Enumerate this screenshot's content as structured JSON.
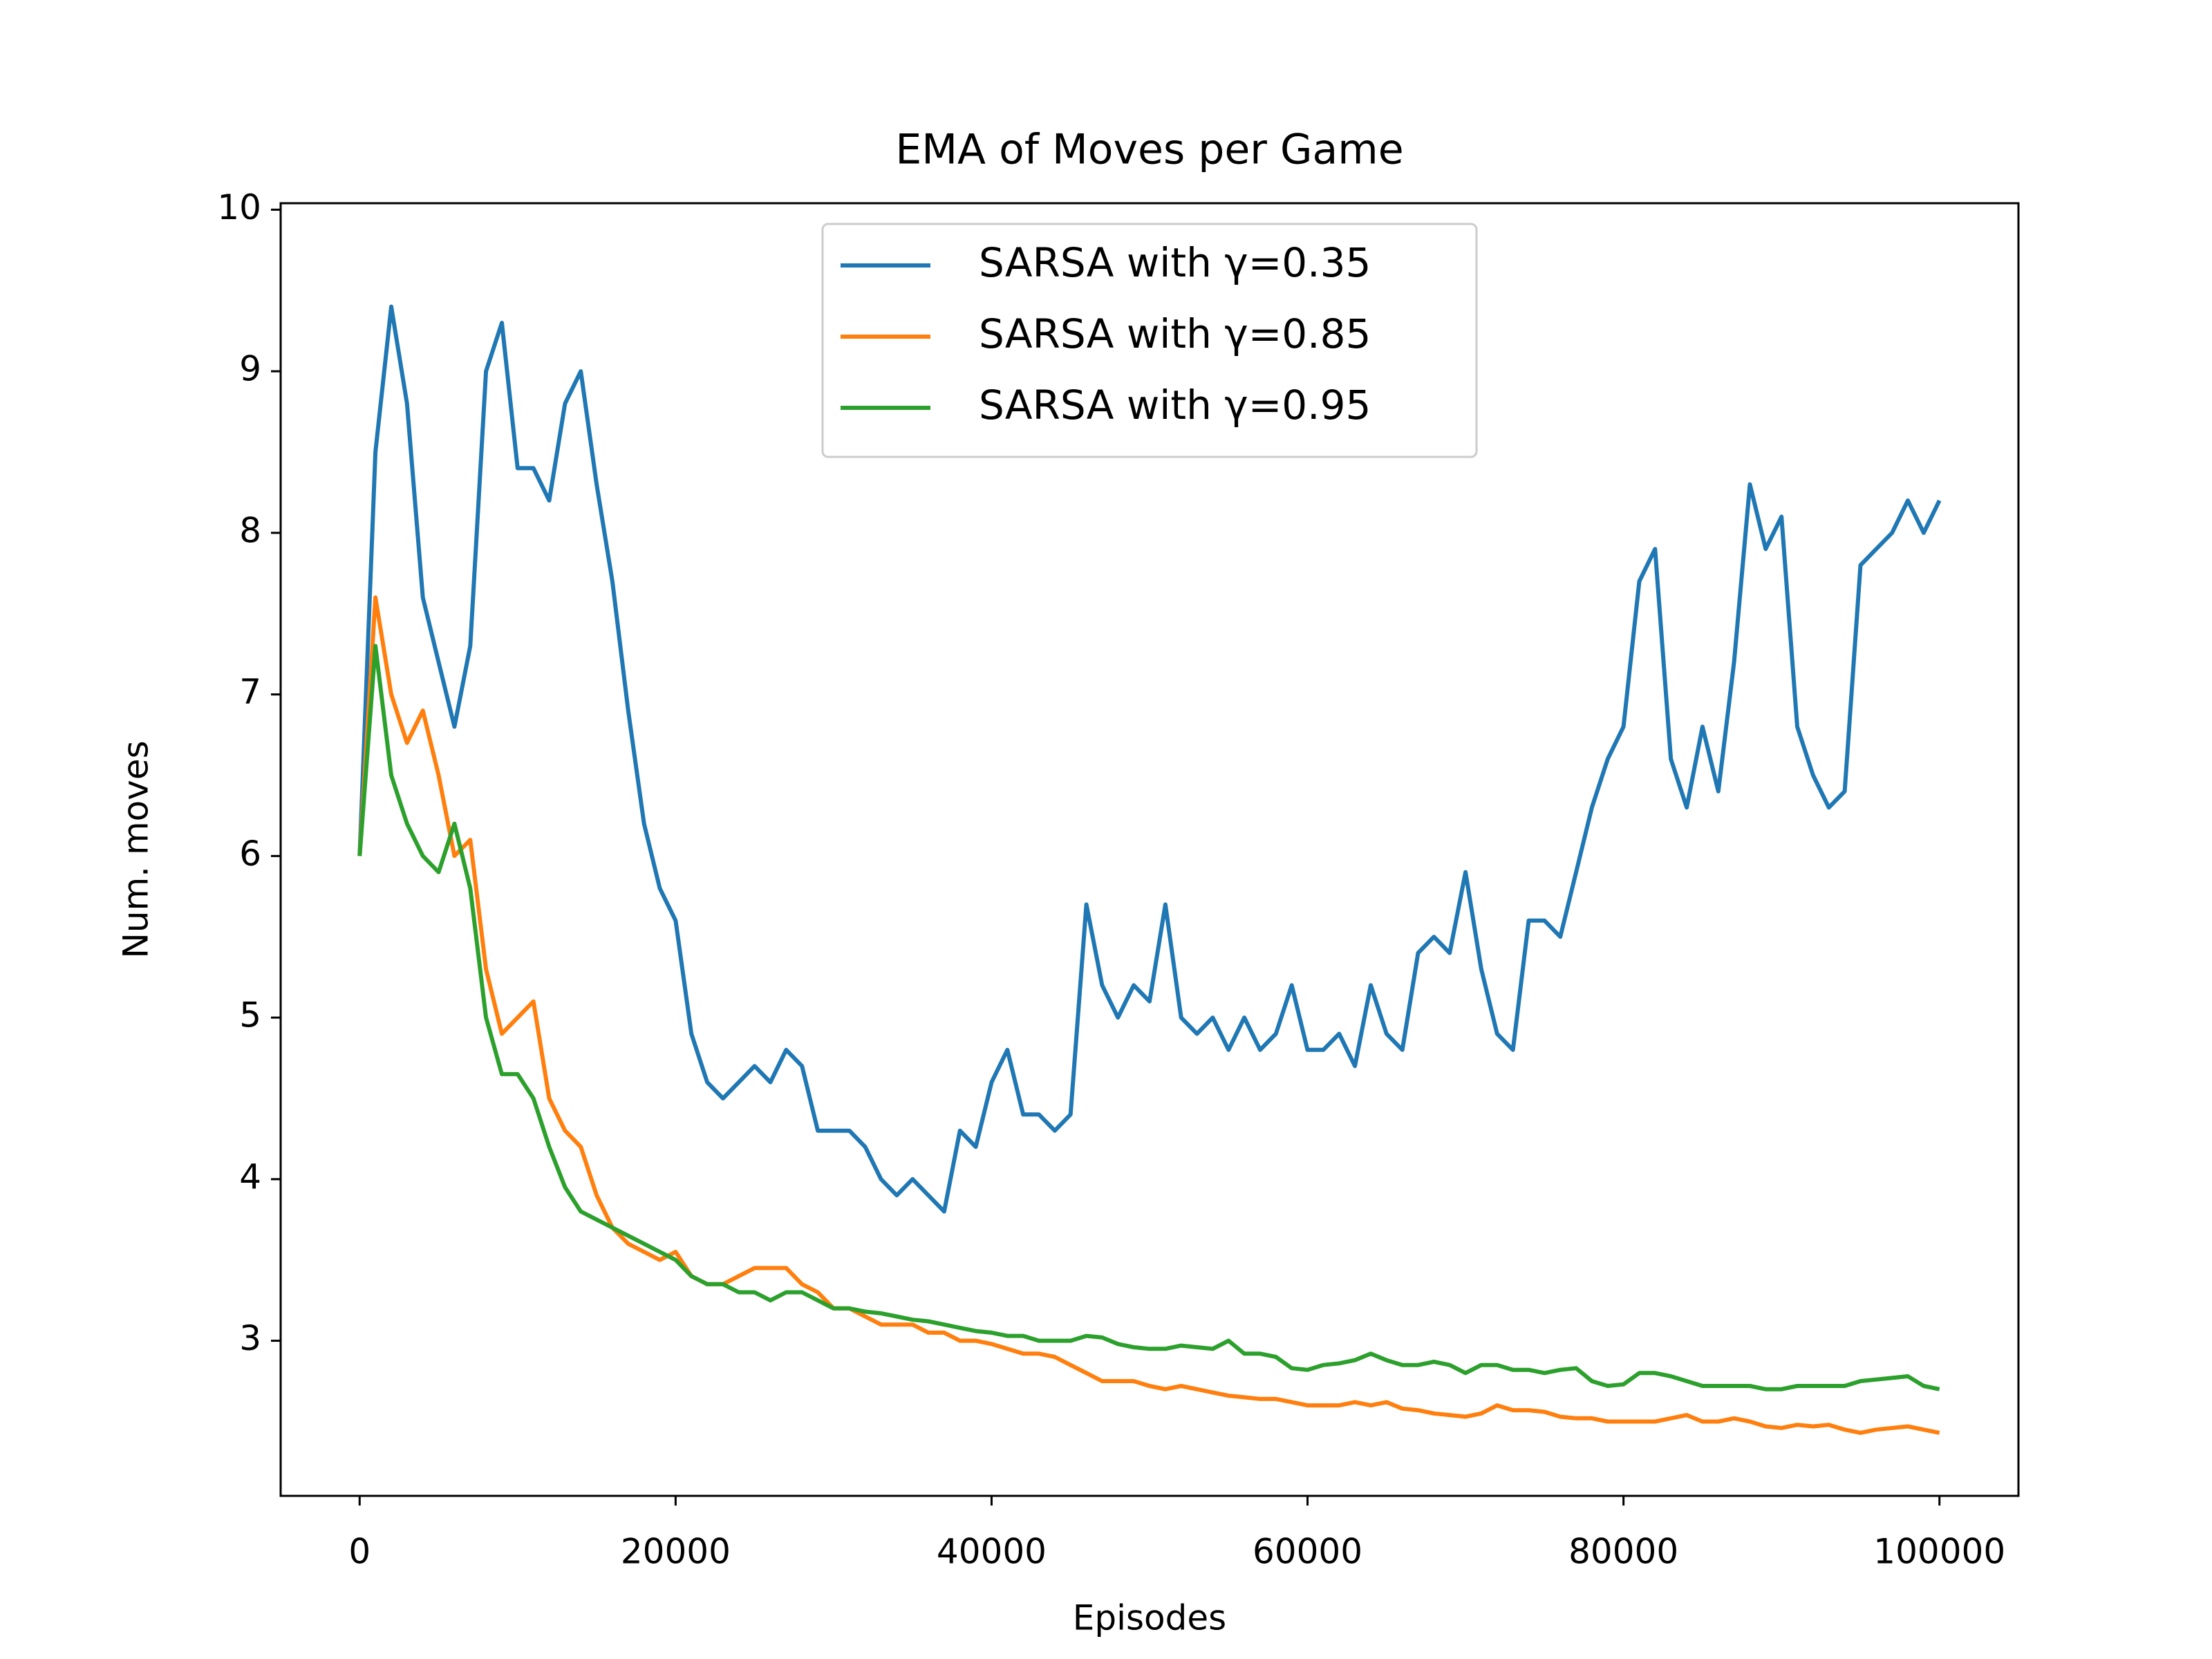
{
  "chart_data": {
    "type": "line",
    "title": "EMA of Moves per Game",
    "xlabel": "Episodes",
    "ylabel": "Num. moves",
    "x": [
      0,
      1000,
      2000,
      3000,
      4000,
      5000,
      6000,
      7000,
      8000,
      9000,
      10000,
      11000,
      12000,
      13000,
      14000,
      15000,
      16000,
      17000,
      18000,
      19000,
      20000,
      21000,
      22000,
      23000,
      24000,
      25000,
      26000,
      27000,
      28000,
      29000,
      30000,
      31000,
      32000,
      33000,
      34000,
      35000,
      36000,
      37000,
      38000,
      39000,
      40000,
      41000,
      42000,
      43000,
      44000,
      45000,
      46000,
      47000,
      48000,
      49000,
      50000,
      51000,
      52000,
      53000,
      54000,
      55000,
      56000,
      57000,
      58000,
      59000,
      60000,
      61000,
      62000,
      63000,
      64000,
      65000,
      66000,
      67000,
      68000,
      69000,
      70000,
      71000,
      72000,
      73000,
      74000,
      75000,
      76000,
      77000,
      78000,
      79000,
      80000,
      81000,
      82000,
      83000,
      84000,
      85000,
      86000,
      87000,
      88000,
      89000,
      90000,
      91000,
      92000,
      93000,
      94000,
      95000,
      96000,
      97000,
      98000,
      99000,
      100000
    ],
    "series": [
      {
        "name": "SARSA with γ=0.35",
        "color": "#1f77b4",
        "values": [
          6.0,
          8.5,
          9.4,
          8.8,
          7.6,
          7.2,
          6.8,
          7.3,
          9.0,
          9.3,
          8.4,
          8.4,
          8.2,
          8.8,
          9.0,
          8.3,
          7.7,
          6.9,
          6.2,
          5.8,
          5.6,
          4.9,
          4.6,
          4.5,
          4.6,
          4.7,
          4.6,
          4.8,
          4.7,
          4.3,
          4.3,
          4.3,
          4.2,
          4.0,
          3.9,
          4.0,
          3.9,
          3.8,
          4.3,
          4.2,
          4.6,
          4.8,
          4.4,
          4.4,
          4.3,
          4.4,
          5.7,
          5.2,
          5.0,
          5.2,
          5.1,
          5.7,
          5.0,
          4.9,
          5.0,
          4.8,
          5.0,
          4.8,
          4.9,
          5.2,
          4.8,
          4.8,
          4.9,
          4.7,
          5.2,
          4.9,
          4.8,
          5.4,
          5.5,
          5.4,
          5.9,
          5.3,
          4.9,
          4.8,
          5.6,
          5.6,
          5.5,
          5.9,
          6.3,
          6.6,
          6.8,
          7.7,
          7.9,
          6.6,
          6.3,
          6.8,
          6.4,
          7.2,
          8.3,
          7.9,
          8.1,
          6.8,
          6.5,
          6.3,
          6.4,
          7.8,
          7.9,
          8.0,
          8.2,
          8.0,
          8.2
        ]
      },
      {
        "name": "SARSA with γ=0.85",
        "color": "#ff7f0e",
        "values": [
          6.0,
          7.6,
          7.0,
          6.7,
          6.9,
          6.5,
          6.0,
          6.1,
          5.3,
          4.9,
          5.0,
          5.1,
          4.5,
          4.3,
          4.2,
          3.9,
          3.7,
          3.6,
          3.55,
          3.5,
          3.55,
          3.4,
          3.35,
          3.35,
          3.4,
          3.45,
          3.45,
          3.45,
          3.35,
          3.3,
          3.2,
          3.2,
          3.15,
          3.1,
          3.1,
          3.1,
          3.05,
          3.05,
          3.0,
          3.0,
          2.98,
          2.95,
          2.92,
          2.92,
          2.9,
          2.85,
          2.8,
          2.75,
          2.75,
          2.75,
          2.72,
          2.7,
          2.72,
          2.7,
          2.68,
          2.66,
          2.65,
          2.64,
          2.64,
          2.62,
          2.6,
          2.6,
          2.6,
          2.62,
          2.6,
          2.62,
          2.58,
          2.57,
          2.55,
          2.54,
          2.53,
          2.55,
          2.6,
          2.57,
          2.57,
          2.56,
          2.53,
          2.52,
          2.52,
          2.5,
          2.5,
          2.5,
          2.5,
          2.52,
          2.54,
          2.5,
          2.5,
          2.52,
          2.5,
          2.47,
          2.46,
          2.48,
          2.47,
          2.48,
          2.45,
          2.43,
          2.45,
          2.46,
          2.47,
          2.45,
          2.43
        ]
      },
      {
        "name": "SARSA with γ=0.95",
        "color": "#2ca02c",
        "values": [
          6.0,
          7.3,
          6.5,
          6.2,
          6.0,
          5.9,
          6.2,
          5.8,
          5.0,
          4.65,
          4.65,
          4.5,
          4.2,
          3.95,
          3.8,
          3.75,
          3.7,
          3.65,
          3.6,
          3.55,
          3.5,
          3.4,
          3.35,
          3.35,
          3.3,
          3.3,
          3.25,
          3.3,
          3.3,
          3.25,
          3.2,
          3.2,
          3.18,
          3.17,
          3.15,
          3.13,
          3.12,
          3.1,
          3.08,
          3.06,
          3.05,
          3.03,
          3.03,
          3.0,
          3.0,
          3.0,
          3.03,
          3.02,
          2.98,
          2.96,
          2.95,
          2.95,
          2.97,
          2.96,
          2.95,
          3.0,
          2.92,
          2.92,
          2.9,
          2.83,
          2.82,
          2.85,
          2.86,
          2.88,
          2.92,
          2.88,
          2.85,
          2.85,
          2.87,
          2.85,
          2.8,
          2.85,
          2.85,
          2.82,
          2.82,
          2.8,
          2.82,
          2.83,
          2.75,
          2.72,
          2.73,
          2.8,
          2.8,
          2.78,
          2.75,
          2.72,
          2.72,
          2.72,
          2.72,
          2.7,
          2.7,
          2.72,
          2.72,
          2.72,
          2.72,
          2.75,
          2.76,
          2.77,
          2.78,
          2.72,
          2.7
        ]
      }
    ],
    "xlim": [
      -5000,
      105000
    ],
    "ylim": [
      2.04,
      10.04
    ],
    "xticks": [
      0,
      20000,
      40000,
      60000,
      80000,
      100000
    ],
    "yticks": [
      3,
      4,
      5,
      6,
      7,
      8,
      9,
      10
    ],
    "legend": "upper center",
    "grid": false
  }
}
